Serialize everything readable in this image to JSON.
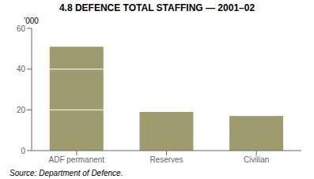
{
  "chart_data": {
    "type": "bar",
    "title": "4.8  DEFENCE TOTAL STAFFING — 2001–02",
    "categories": [
      "ADF permanent",
      "Reserves",
      "Civilian"
    ],
    "values": [
      51,
      19,
      17
    ],
    "color": "#9e9c6e",
    "ylim": [
      0,
      60
    ],
    "yticks": [
      0,
      20,
      40,
      60
    ],
    "ylabel": "’000",
    "source": "Source: Department of Defence.",
    "bar_lines": [
      20,
      40
    ],
    "grid": false
  }
}
